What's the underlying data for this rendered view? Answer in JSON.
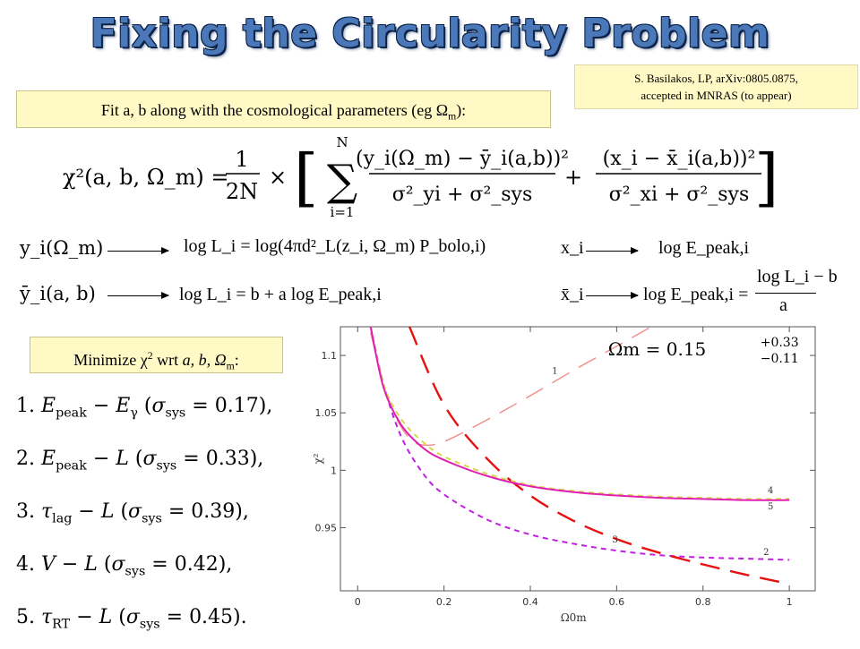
{
  "slide": {
    "title": "Fixing the Circularity Problem",
    "reference_line1": "S. Basilakos, LP, arXiv:0805.0875,",
    "reference_line2": "accepted in MNRAS (to appear)",
    "fit_text": "Fit a, b along with the cosmological parameters (eg Ω",
    "fit_sub": "m",
    "fit_end": "):",
    "minimize_text": "Minimize χ",
    "minimize_sup": "2",
    "minimize_rest": " wrt ",
    "minimize_vars": "a, b, Ω",
    "minimize_sub": "m",
    "minimize_end": ":"
  },
  "chi2_equation": {
    "lhs": "χ²(a, b, Ω_m) =",
    "frac_num": "1",
    "frac_den": "2N",
    "times": "×",
    "sum_upper": "N",
    "sum_lower": "i=1",
    "term1_num": "(y_i(Ω_m) − ȳ_i(a,b))²",
    "term1_den": "σ²_yi + σ²_sys",
    "plus": "+",
    "term2_num": "(x_i − x̄_i(a,b))²",
    "term2_den": "σ²_xi + σ²_sys"
  },
  "mappings": {
    "y_left": "y_i(Ω_m)",
    "y_right": "log L_i = log(4πd²_L(z_i, Ω_m) P_bolo,i)",
    "ybar_left": "ȳ_i(a, b)",
    "ybar_right": "log L_i = b + a log E_peak,i",
    "x_left": "x_i",
    "x_right": "log E_peak,i",
    "xbar_left": "x̄_i",
    "xbar_right_lhs": "log E_peak,i =",
    "xbar_num": "log L_i − b",
    "xbar_den": "a"
  },
  "relations": [
    {
      "num": "1.",
      "lhs": "E",
      "lhs_sub": "peak",
      "rhs": " − E",
      "rhs_sub": "γ",
      "sig": "0.17"
    },
    {
      "num": "2.",
      "lhs": "E",
      "lhs_sub": "peak",
      "rhs": " − L",
      "rhs_sub": "",
      "sig": "0.33"
    },
    {
      "num": "3.",
      "lhs": "τ",
      "lhs_sub": "lag",
      "rhs": " − L",
      "rhs_sub": "",
      "sig": "0.39"
    },
    {
      "num": "4.",
      "lhs": "V",
      "lhs_sub": "",
      "rhs": " − L",
      "rhs_sub": "",
      "sig": "0.42"
    },
    {
      "num": "5.",
      "lhs": "τ",
      "lhs_sub": "RT",
      "rhs": " − L",
      "rhs_sub": "",
      "sig": "0.45"
    }
  ],
  "relation_text": {
    "sigma_sys": "σ",
    "sys": "sys",
    "eq": " = ",
    "open": " (",
    "close": ")",
    "comma": ",",
    "period": "."
  },
  "chart_data": {
    "type": "line",
    "xlabel": "Ω0m",
    "ylabel": "χ²",
    "xlim": [
      -0.04,
      1.06
    ],
    "ylim": [
      0.895,
      1.125
    ],
    "xticks": [
      0,
      0.2,
      0.4,
      0.6,
      0.8,
      1
    ],
    "xtick_labels": [
      "0",
      "0.2",
      "0.4",
      "0.6",
      "0.8",
      "1"
    ],
    "yticks": [
      0.95,
      1.0,
      1.05,
      1.1
    ],
    "ytick_labels": [
      "0.95",
      "1",
      "1.05",
      "1.1"
    ],
    "annotation": "Ω_m = 0.15 (+0.33 / −0.11)",
    "annotation_main": "Ωm  =  0.15",
    "annotation_sup": "+0.33",
    "annotation_sub": "−0.11",
    "series": [
      {
        "name": "1",
        "color": "#f08c8c",
        "dash": "long",
        "x": [
          0.03,
          0.06,
          0.09,
          0.12,
          0.15,
          0.2,
          0.3,
          0.4,
          0.5,
          0.6,
          0.68
        ],
        "y": [
          1.12,
          1.075,
          1.045,
          1.028,
          1.022,
          1.025,
          1.044,
          1.065,
          1.087,
          1.108,
          1.125
        ]
      },
      {
        "name": "2",
        "color": "#c020e0",
        "dash": "short",
        "x": [
          0.03,
          0.06,
          0.1,
          0.15,
          0.2,
          0.3,
          0.4,
          0.5,
          0.6,
          0.7,
          0.8,
          0.9,
          1.0
        ],
        "y": [
          1.125,
          1.075,
          1.03,
          0.998,
          0.979,
          0.957,
          0.944,
          0.936,
          0.93,
          0.926,
          0.924,
          0.923,
          0.922
        ]
      },
      {
        "name": "3",
        "color": "#e81010",
        "dash": "long",
        "x": [
          0.12,
          0.2,
          0.3,
          0.4,
          0.5,
          0.6,
          0.7,
          0.8,
          0.9,
          1.0
        ],
        "y": [
          1.125,
          1.057,
          1.01,
          0.978,
          0.956,
          0.94,
          0.928,
          0.918,
          0.909,
          0.901
        ]
      },
      {
        "name": "4",
        "color": "#d8d848",
        "dash": "short",
        "x": [
          0.03,
          0.06,
          0.1,
          0.15,
          0.2,
          0.3,
          0.4,
          0.5,
          0.6,
          0.7,
          0.8,
          0.9,
          1.0
        ],
        "y": [
          1.125,
          1.075,
          1.045,
          1.025,
          1.012,
          0.997,
          0.987,
          0.982,
          0.979,
          0.977,
          0.976,
          0.975,
          0.975
        ]
      },
      {
        "name": "5",
        "color": "#e020b0",
        "dash": "solid",
        "x": [
          0.03,
          0.06,
          0.1,
          0.15,
          0.2,
          0.3,
          0.4,
          0.5,
          0.6,
          0.7,
          0.8,
          0.9,
          1.0
        ],
        "y": [
          1.125,
          1.072,
          1.04,
          1.02,
          1.009,
          0.995,
          0.986,
          0.981,
          0.978,
          0.976,
          0.975,
          0.974,
          0.974
        ]
      }
    ],
    "series_labels": [
      {
        "text": "1",
        "x": 0.45,
        "y": 1.084
      },
      {
        "text": "2",
        "x": 0.94,
        "y": 0.926
      },
      {
        "text": "3",
        "x": 0.59,
        "y": 0.937
      },
      {
        "text": "4",
        "x": 0.95,
        "y": 0.98
      },
      {
        "text": "5",
        "x": 0.95,
        "y": 0.966
      }
    ]
  },
  "colors": {
    "title": "#4a78b8",
    "box_fill": "#fff9c6"
  }
}
